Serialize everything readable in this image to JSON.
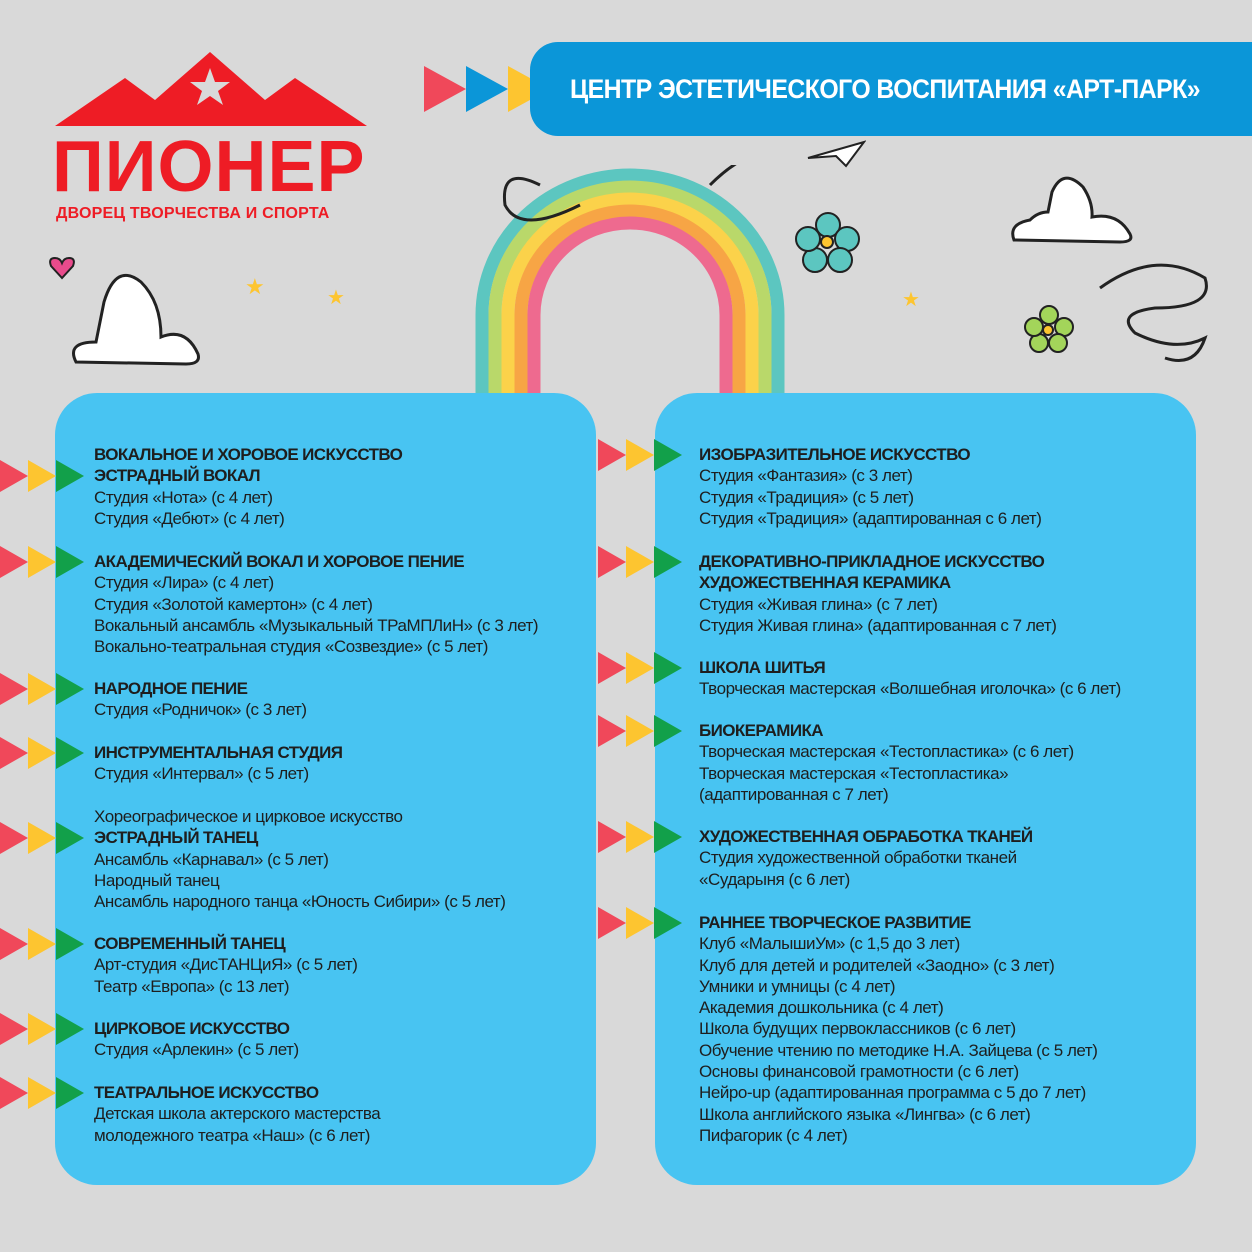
{
  "logo": {
    "name": "ПИОНЕР",
    "subtitle": "ДВОРЕЦ ТВОРЧЕСТВА И СПОРТА"
  },
  "header": {
    "title": "ЦЕНТР ЭСТЕТИЧЕСКОГО ВОСПИТАНИЯ «АРТ-ПАРК»"
  },
  "colors": {
    "background": "#d9d9d9",
    "panel": "#48c4f2",
    "header": "#0b96d8",
    "logo_red": "#ee1c25",
    "arrow_red": "#f0485a",
    "arrow_yellow": "#fdc530",
    "arrow_green": "#12a04a"
  },
  "left": [
    {
      "lines": [
        {
          "t": "ВОКАЛЬНОЕ И ХОРОВОЕ ИСКУССТВО",
          "b": true
        },
        {
          "t": "ЭСТРАДНЫЙ ВОКАЛ",
          "b": true
        },
        {
          "t": "Студия «Нота» (с 4 лет)"
        },
        {
          "t": "Студия «Дебют» (с 4 лет)"
        }
      ]
    },
    {
      "lines": [
        {
          "t": "АКАДЕМИЧЕСКИЙ ВОКАЛ И ХОРОВОЕ ПЕНИЕ",
          "b": true
        },
        {
          "t": "Студия «Лира» (с 4 лет)"
        },
        {
          "t": "Студия «Золотой камертон» (с 4 лет)"
        },
        {
          "t": "Вокальный ансамбль «Музыкальный ТРаМПЛиН» (с 3 лет)"
        },
        {
          "t": "Вокально-театральная студия «Созвездие» (с 5 лет)"
        }
      ]
    },
    {
      "lines": [
        {
          "t": "НАРОДНОЕ ПЕНИЕ",
          "b": true
        },
        {
          "t": "Студия «Родничок» (с 3 лет)"
        }
      ]
    },
    {
      "lines": [
        {
          "t": "ИНСТРУМЕНТАЛЬНАЯ СТУДИЯ",
          "b": true
        },
        {
          "t": "Студия «Интервал» (с 5 лет)"
        }
      ]
    },
    {
      "lines": [
        {
          "t": "Хореографическое и цирковое искусство"
        },
        {
          "t": "ЭСТРАДНЫЙ ТАНЕЦ",
          "b": true
        },
        {
          "t": "Ансамбль «Карнавал» (с 5 лет)"
        },
        {
          "t": "Народный танец"
        },
        {
          "t": "Ансамбль народного танца «Юность Сибири» (с 5 лет)"
        }
      ]
    },
    {
      "lines": [
        {
          "t": "СОВРЕМЕННЫЙ ТАНЕЦ",
          "b": true
        },
        {
          "t": "Арт-студия «ДисТАНЦиЯ» (с 5 лет)"
        },
        {
          "t": "Театр «Европа» (с 13 лет)"
        }
      ]
    },
    {
      "lines": [
        {
          "t": "ЦИРКОВОЕ ИСКУССТВО",
          "b": true
        },
        {
          "t": "Студия «Арлекин» (с 5 лет)"
        }
      ]
    },
    {
      "lines": [
        {
          "t": "ТЕАТРАЛЬНОЕ ИСКУССТВО",
          "b": true
        },
        {
          "t": "Детская школа актерского мастерства"
        },
        {
          "t": "молодежного театра «Наш» (с 6 лет)"
        }
      ]
    }
  ],
  "right": [
    {
      "lines": [
        {
          "t": "ИЗОБРАЗИТЕЛЬНОЕ ИСКУССТВО",
          "b": true
        },
        {
          "t": "Студия «Фантазия» (с 3 лет)"
        },
        {
          "t": "Студия «Традиция» (с 5 лет)"
        },
        {
          "t": "Студия «Традиция» (адаптированная с 6 лет)"
        }
      ]
    },
    {
      "lines": [
        {
          "t": "ДЕКОРАТИВНО-ПРИКЛАДНОЕ ИСКУССТВО",
          "b": true
        },
        {
          "t": "ХУДОЖЕСТВЕННАЯ КЕРАМИКА",
          "b": true
        },
        {
          "t": "Студия «Живая глина» (с 7 лет)"
        },
        {
          "t": "Студия Живая глина» (адаптированная с 7 лет)"
        }
      ]
    },
    {
      "lines": [
        {
          "t": "ШКОЛА ШИТЬЯ",
          "b": true
        },
        {
          "t": "Творческая мастерская «Волшебная иголочка» (с 6 лет)"
        }
      ]
    },
    {
      "lines": [
        {
          "t": "БИОКЕРАМИКА",
          "b": true
        },
        {
          "t": "Творческая мастерская «Тестопластика» (с 6 лет)"
        },
        {
          "t": "Творческая мастерская «Тестопластика»"
        },
        {
          "t": "(адаптированная с 7 лет)"
        }
      ]
    },
    {
      "lines": [
        {
          "t": "ХУДОЖЕСТВЕННАЯ ОБРАБОТКА ТКАНЕЙ",
          "b": true
        },
        {
          "t": "Студия художественной обработки тканей"
        },
        {
          "t": "«Сударыня (с 6 лет)"
        }
      ]
    },
    {
      "lines": [
        {
          "t": "РАННЕЕ ТВОРЧЕСКОЕ РАЗВИТИЕ",
          "b": true
        },
        {
          "t": "Клуб «МалышиУм» (с 1,5 до 3 лет)"
        },
        {
          "t": "Клуб для детей и родителей «Заодно» (с 3 лет)"
        },
        {
          "t": "Умники и умницы (с 4 лет)"
        },
        {
          "t": "Академия дошкольника (с 4 лет)"
        },
        {
          "t": "Школа будущих первоклассников (с 6 лет)"
        },
        {
          "t": "Обучение чтению по методике Н.А. Зайцева (с 5 лет)"
        },
        {
          "t": "Основы финансовой грамотности (с 6 лет)"
        },
        {
          "t": "Нейро-up (адаптированная программа с 5 до 7 лет)"
        },
        {
          "t": "Школа английского языка «Лингва» (с 6 лет)"
        },
        {
          "t": "Пифагорик (с 4 лет)"
        }
      ]
    }
  ]
}
